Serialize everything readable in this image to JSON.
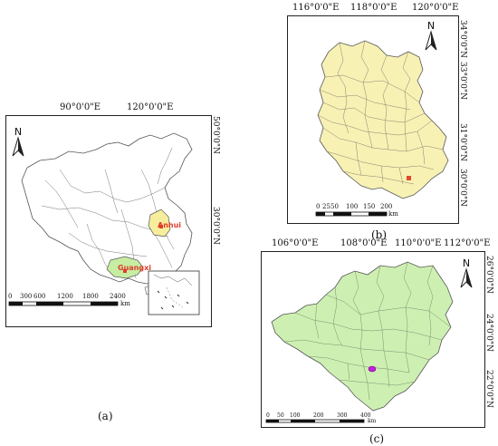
{
  "panel_a": {
    "caption": "(a)",
    "lon_labels": [
      "90°0'0\"E",
      "120°0'0\"E"
    ],
    "lat_labels": [
      "50°0'0\"N",
      "30°0'0\"N"
    ],
    "north": "N",
    "highlight_1": "Anhui",
    "highlight_2": "Guangxi",
    "scale_ticks": [
      "0",
      "300",
      "600",
      "1200",
      "1800",
      "2400"
    ],
    "scale_unit": "km",
    "colors": {
      "anhui": "#f6ee9c",
      "guangxi": "#c6eda2",
      "marker": "#e53c2b"
    }
  },
  "panel_b": {
    "caption": "(b)",
    "lon_labels": [
      "116°0'0\"E",
      "118°0'0\"E",
      "120°0'0\"E"
    ],
    "lat_labels": [
      "34°0'0\"N",
      "33°0'0\"N",
      "31°0'0\"N",
      "30°0'0\"N"
    ],
    "north": "N",
    "scale_ticks": [
      "0",
      "25",
      "50",
      "100",
      "150",
      "200"
    ],
    "scale_unit": "km",
    "colors": {
      "fill": "#f8f1b4",
      "marker": "#e24a2a"
    }
  },
  "panel_c": {
    "caption": "(c)",
    "lon_labels": [
      "106°0'0\"E",
      "108°0'0\"E",
      "110°0'0\"E",
      "112°0'0\"E"
    ],
    "lat_labels": [
      "26°0'0\"N",
      "24°0'0\"N",
      "22°0'0\"N"
    ],
    "north": "N",
    "scale_ticks": [
      "0",
      "50",
      "100",
      "200",
      "300",
      "400"
    ],
    "scale_unit": "km",
    "colors": {
      "fill": "#cdf0b2",
      "marker": "#c11fd9"
    }
  }
}
